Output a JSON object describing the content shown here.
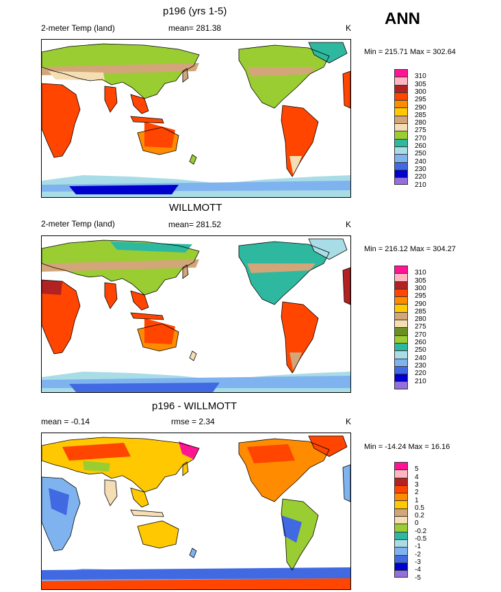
{
  "season": "ANN",
  "panels": [
    {
      "id": "model",
      "title": "p196 (yrs 1-5)",
      "left_label": "2-meter Temp (land)",
      "center_label": "mean= 281.38",
      "units": "K",
      "minmax": "Min = 215.71 Max = 302.64",
      "colors": [
        "#ff1493",
        "#ffb6c1",
        "#b22222",
        "#ff4500",
        "#ff8c00",
        "#ffc800",
        "#d2a679",
        "#f5deb3",
        "#9acd32",
        "#2fb8a0",
        "#a8dce6",
        "#7fb3ef",
        "#4169e1",
        "#0000cd",
        "#9370db"
      ],
      "levels": [
        "310",
        "305",
        "300",
        "295",
        "290",
        "285",
        "280",
        "275",
        "270",
        "260",
        "250",
        "240",
        "230",
        "220",
        "210"
      ]
    },
    {
      "id": "obs",
      "title": "WILLMOTT",
      "left_label": "2-meter Temp (land)",
      "center_label": "mean= 281.52",
      "units": "K",
      "minmax": "Min = 216.12 Max = 304.27",
      "colors": [
        "#ff1493",
        "#ffb6c1",
        "#b22222",
        "#ff4500",
        "#ff8c00",
        "#ffc800",
        "#d2a679",
        "#f5deb3",
        "#6b8e23",
        "#9acd32",
        "#2fb8a0",
        "#a8dce6",
        "#7fb3ef",
        "#4169e1",
        "#0000cd",
        "#9370db"
      ],
      "levels": [
        "310",
        "305",
        "300",
        "295",
        "290",
        "285",
        "280",
        "275",
        "270",
        "260",
        "250",
        "240",
        "230",
        "220",
        "210"
      ]
    },
    {
      "id": "diff",
      "title": "p196 - WILLMOTT",
      "left_label": "mean =  -0.14",
      "center_label": "rmse =   2.34",
      "units": "K",
      "minmax": "Min = -14.24 Max =  16.16",
      "colors": [
        "#ff1493",
        "#ffb6c1",
        "#b22222",
        "#ff4500",
        "#ff8c00",
        "#ffc800",
        "#d2a679",
        "#f5deb3",
        "#9acd32",
        "#2fb8a0",
        "#a8dce6",
        "#7fb3ef",
        "#4169e1",
        "#0000cd",
        "#9370db"
      ],
      "levels": [
        "5",
        "4",
        "3",
        "2",
        "1",
        "0.5",
        "0.2",
        "0",
        "-0.2",
        "-0.5",
        "-1",
        "-2",
        "-3",
        "-4",
        "-5"
      ]
    }
  ],
  "chart_data": [
    {
      "type": "heatmap",
      "title": "p196 (yrs 1-5)",
      "variable": "2-meter Temp (land)",
      "units": "K",
      "mean": 281.38,
      "min": 215.71,
      "max": 302.64,
      "contour_levels": [
        210,
        220,
        230,
        240,
        250,
        260,
        270,
        275,
        280,
        285,
        290,
        295,
        300,
        305,
        310
      ]
    },
    {
      "type": "heatmap",
      "title": "WILLMOTT",
      "variable": "2-meter Temp (land)",
      "units": "K",
      "mean": 281.52,
      "min": 216.12,
      "max": 304.27,
      "contour_levels": [
        210,
        220,
        230,
        240,
        250,
        260,
        270,
        275,
        280,
        285,
        290,
        295,
        300,
        305,
        310
      ]
    },
    {
      "type": "heatmap",
      "title": "p196 - WILLMOTT",
      "units": "K",
      "mean": -0.14,
      "rmse": 2.34,
      "min": -14.24,
      "max": 16.16,
      "contour_levels": [
        -5,
        -4,
        -3,
        -2,
        -1,
        -0.5,
        -0.2,
        0,
        0.2,
        0.5,
        1,
        2,
        3,
        4,
        5
      ]
    }
  ]
}
